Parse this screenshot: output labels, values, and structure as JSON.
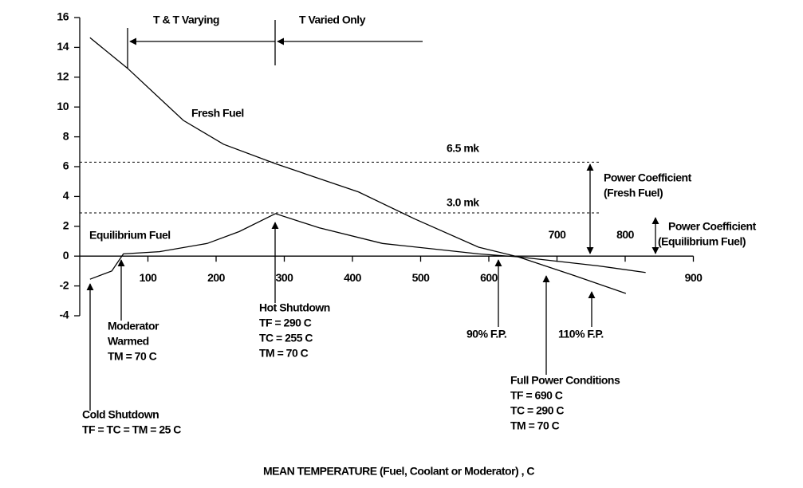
{
  "chart_data": {
    "type": "line",
    "x_label": "MEAN TEMPERATURE (Fuel, Coolant or Moderator) , C",
    "xlim": [
      0,
      900
    ],
    "xticks": [
      100,
      200,
      300,
      400,
      500,
      600,
      700,
      800,
      900
    ],
    "ylim": [
      -4,
      16
    ],
    "yticks": [
      -4,
      -2,
      0,
      2,
      4,
      6,
      8,
      10,
      12,
      14,
      16
    ],
    "series": [
      {
        "name": "Fresh Fuel",
        "color": "#000000",
        "x": [
          15,
          70,
          152,
          211,
          287,
          409,
          491,
          585,
          643,
          725,
          801
        ],
        "values": [
          14.65,
          12.6,
          9.1,
          7.5,
          6.2,
          4.3,
          2.5,
          0.6,
          -0.05,
          -1.3,
          -2.5
        ]
      },
      {
        "name": "Equilibrium Fuel",
        "color": "#000000",
        "x": [
          15,
          47,
          64,
          117,
          187,
          234,
          287,
          351,
          444,
          585,
          643,
          760,
          830
        ],
        "values": [
          -1.55,
          -1.0,
          0.15,
          0.3,
          0.85,
          1.65,
          2.85,
          1.9,
          0.85,
          0.15,
          -0.05,
          -0.65,
          -1.1
        ]
      }
    ],
    "reference_lines": [
      6.3,
      2.9
    ],
    "annotations": [
      {
        "lines": [
          "6.5 mk"
        ]
      },
      {
        "lines": [
          "3.0 mk"
        ]
      },
      {
        "lines": [
          "Power Coefficient",
          "(Fresh Fuel)"
        ]
      },
      {
        "lines": [
          "Power Coefficient",
          "(Equilibrium Fuel)"
        ]
      },
      {
        "lines": [
          "Moderator",
          "Warmed",
          "TM = 70 C"
        ]
      },
      {
        "lines": [
          "Hot Shutdown",
          "TF = 290 C",
          "TC = 255 C",
          "TM = 70 C"
        ]
      },
      {
        "lines": [
          "90% F.P."
        ]
      },
      {
        "lines": [
          "110% F.P."
        ]
      },
      {
        "lines": [
          "Full Power Conditions",
          "TF = 690 C",
          "TC = 290 C",
          "TM = 70 C"
        ]
      },
      {
        "lines": [
          "Cold Shutdown",
          "TF = TC = TM = 25 C"
        ]
      },
      {
        "lines": [
          "T & T Varying"
        ]
      },
      {
        "lines": [
          "T Varied Only"
        ]
      }
    ]
  }
}
